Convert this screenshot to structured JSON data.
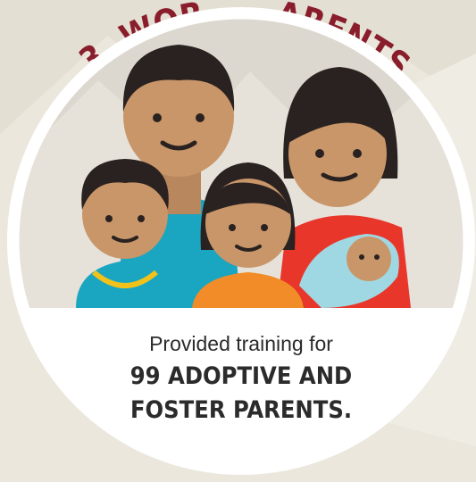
{
  "banner": {
    "left_fragment": "3. WOR",
    "right_fragment": "ARENTS"
  },
  "caption": {
    "line1": "Provided training for",
    "line2": "99 ADOPTIVE AND",
    "line3": "FOSTER PARENTS."
  }
}
